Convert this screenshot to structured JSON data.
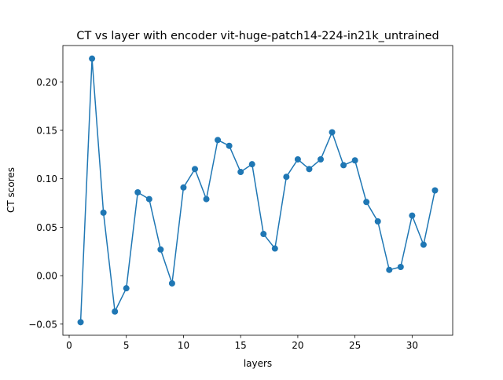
{
  "chart_data": {
    "type": "line",
    "title": "CT vs layer with encoder vit-huge-patch14-224-in21k_untrained",
    "xlabel": "layers",
    "ylabel": "CT scores",
    "xlim": [
      -0.55,
      33.55
    ],
    "ylim": [
      -0.0615,
      0.2375
    ],
    "xticks": [
      0,
      5,
      10,
      15,
      20,
      25,
      30
    ],
    "xtick_labels": [
      "0",
      "5",
      "10",
      "15",
      "20",
      "25",
      "30"
    ],
    "yticks": [
      -0.05,
      0.0,
      0.05,
      0.1,
      0.15,
      0.2
    ],
    "ytick_labels": [
      "−0.05",
      "0.00",
      "0.05",
      "0.10",
      "0.15",
      "0.20"
    ],
    "grid": false,
    "series": [
      {
        "color": "#1f77b4",
        "marker": "circle",
        "x": [
          1,
          2,
          3,
          4,
          5,
          6,
          7,
          8,
          9,
          10,
          11,
          12,
          13,
          14,
          15,
          16,
          17,
          18,
          19,
          20,
          21,
          22,
          23,
          24,
          25,
          26,
          27,
          28,
          29,
          30,
          31,
          32
        ],
        "y": [
          -0.048,
          0.224,
          0.065,
          -0.037,
          -0.013,
          0.086,
          0.079,
          0.027,
          -0.008,
          0.091,
          0.11,
          0.079,
          0.14,
          0.134,
          0.107,
          0.115,
          0.043,
          0.028,
          0.102,
          0.12,
          0.11,
          0.12,
          0.148,
          0.114,
          0.119,
          0.076,
          0.056,
          0.006,
          0.009,
          0.062,
          0.032,
          0.088
        ]
      }
    ]
  }
}
